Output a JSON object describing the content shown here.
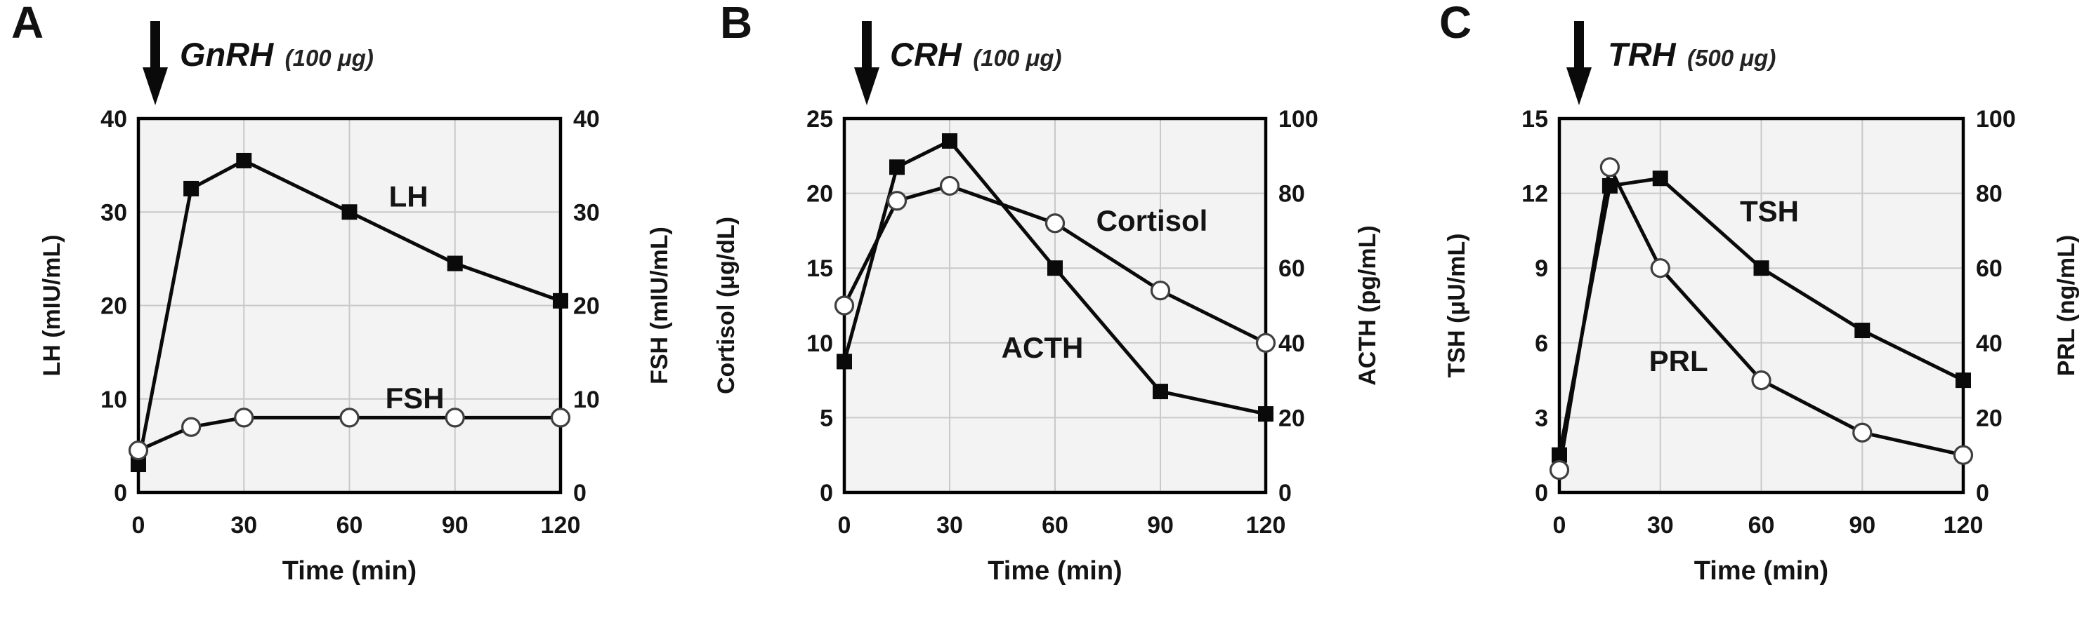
{
  "figure_type": "hormone-stimulation-test-panels",
  "panels": [
    {
      "letter": "A"
    },
    {
      "letter": "B"
    },
    {
      "letter": "C"
    }
  ],
  "colors": {
    "line": "#0a0a0a",
    "marker_fill": "#0a0a0a",
    "open_marker_fill": "#ffffff",
    "open_marker_stroke": "#3f3f3f",
    "plot_background": "#f3f3f3",
    "grid": "#c9c9c9",
    "border": "#000000",
    "text": "#141414",
    "page_background": "#ffffff"
  },
  "chart_data": [
    {
      "type": "line",
      "annotation": {
        "arrow_icon": "down-arrow-icon",
        "hormone": "GnRH",
        "dose": "(100 μg)"
      },
      "x_label": "Time (min)",
      "x": [
        0,
        15,
        30,
        60,
        90,
        120
      ],
      "x_ticks": [
        0,
        30,
        60,
        90,
        120
      ],
      "x_range": [
        0,
        120
      ],
      "grid": true,
      "left_axis": {
        "label": "LH (mIU/mL)",
        "ticks": [
          0,
          10,
          20,
          30,
          40
        ],
        "range": [
          0,
          40
        ]
      },
      "right_axis": {
        "label": "FSH (mIU/mL)",
        "ticks": [
          0,
          10,
          20,
          30,
          40
        ],
        "range": [
          0,
          40
        ]
      },
      "series": [
        {
          "name": "LH",
          "axis": "left",
          "marker": "filled-square",
          "values": [
            3,
            32.5,
            35.5,
            30,
            24.5,
            20.5
          ],
          "label_pos": [
            0.64,
            0.235
          ]
        },
        {
          "name": "FSH",
          "axis": "right",
          "marker": "open-circle",
          "values": [
            4.5,
            7,
            8,
            8,
            8,
            8
          ],
          "label_pos": [
            0.655,
            0.775
          ]
        }
      ]
    },
    {
      "type": "line",
      "annotation": {
        "arrow_icon": "down-arrow-icon",
        "hormone": "CRH",
        "dose": "(100 μg)"
      },
      "x_label": "Time (min)",
      "x": [
        0,
        15,
        30,
        60,
        90,
        120
      ],
      "x_ticks": [
        0,
        30,
        60,
        90,
        120
      ],
      "x_range": [
        0,
        120
      ],
      "grid": true,
      "left_axis": {
        "label": "Cortisol (μg/dL)",
        "ticks": [
          0,
          5,
          10,
          15,
          20,
          25
        ],
        "range": [
          0,
          25
        ]
      },
      "right_axis": {
        "label": "ACTH (pg/mL)",
        "ticks": [
          0,
          20,
          40,
          60,
          80,
          100
        ],
        "range": [
          0,
          100
        ]
      },
      "series": [
        {
          "name": "Cortisol",
          "axis": "left",
          "marker": "open-circle",
          "values": [
            12.5,
            19.5,
            20.5,
            18,
            13.5,
            10
          ],
          "label_pos": [
            0.73,
            0.3
          ]
        },
        {
          "name": "ACTH",
          "axis": "right",
          "marker": "filled-square",
          "values": [
            35,
            87,
            94,
            60,
            27,
            21
          ],
          "label_pos": [
            0.47,
            0.64
          ]
        }
      ]
    },
    {
      "type": "line",
      "annotation": {
        "arrow_icon": "down-arrow-icon",
        "hormone": "TRH",
        "dose": "(500 μg)"
      },
      "x_label": "Time (min)",
      "x": [
        0,
        15,
        30,
        60,
        90,
        120
      ],
      "x_ticks": [
        0,
        30,
        60,
        90,
        120
      ],
      "x_range": [
        0,
        120
      ],
      "grid": true,
      "left_axis": {
        "label": "TSH (μU/mL)",
        "ticks": [
          0,
          3,
          6,
          9,
          12,
          15
        ],
        "range": [
          0,
          15
        ]
      },
      "right_axis": {
        "label": "PRL (ng/mL)",
        "ticks": [
          0,
          20,
          40,
          60,
          80,
          100
        ],
        "range": [
          0,
          100
        ]
      },
      "series": [
        {
          "name": "TSH",
          "axis": "left",
          "marker": "filled-square",
          "values": [
            1.5,
            12.3,
            12.6,
            9,
            6.5,
            4.5
          ],
          "label_pos": [
            0.52,
            0.275
          ]
        },
        {
          "name": "PRL",
          "axis": "right",
          "marker": "open-circle",
          "values": [
            6,
            87,
            60,
            30,
            16,
            10
          ],
          "label_pos": [
            0.295,
            0.675
          ]
        }
      ]
    }
  ]
}
